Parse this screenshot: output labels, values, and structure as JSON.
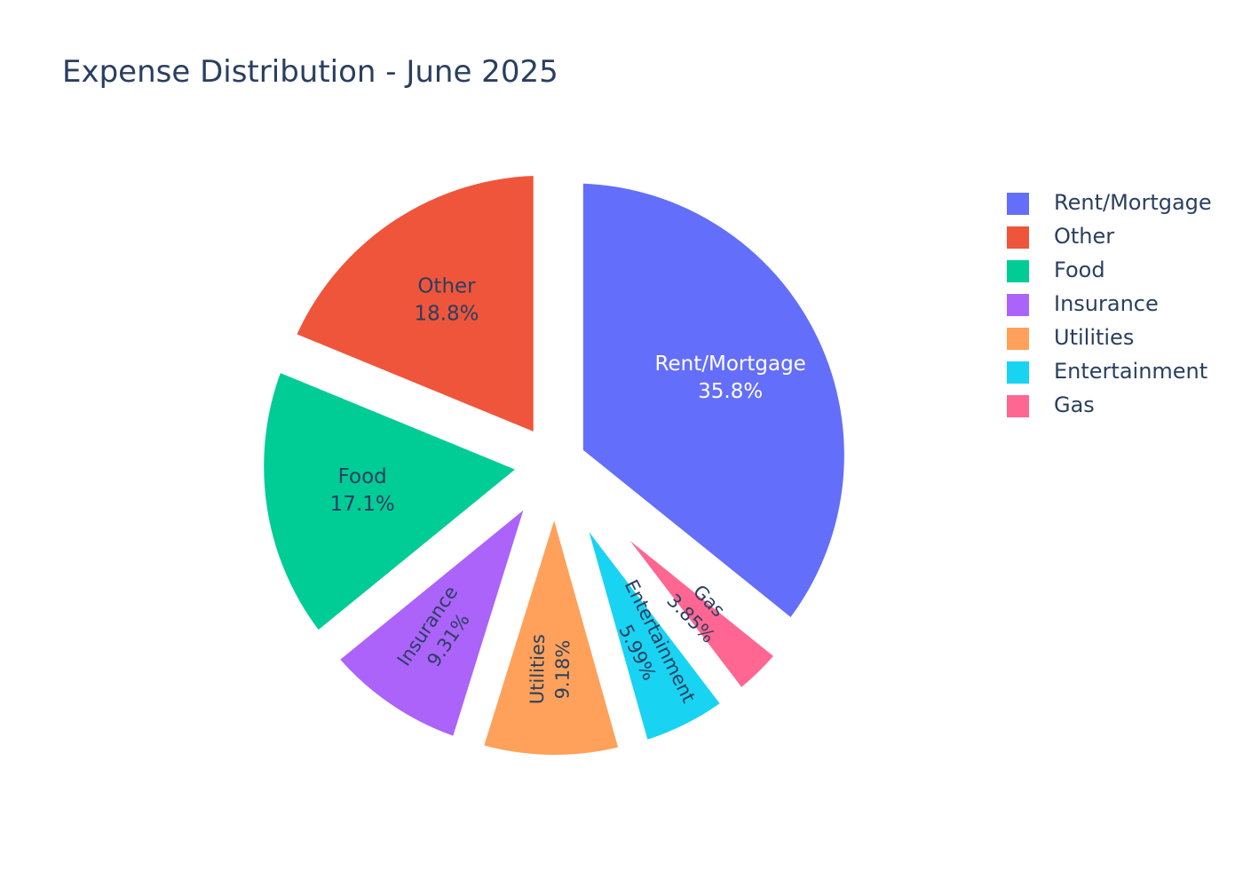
{
  "chart_data": {
    "type": "pie",
    "title": "Expense Distribution - June 2025",
    "legend_position": "right",
    "slices": [
      {
        "label": "Rent/Mortgage",
        "percent_text": "35.8%",
        "value": 35.8,
        "color": "#636efa",
        "label_color": "#ffffff"
      },
      {
        "label": "Gas",
        "percent_text": "3.85%",
        "value": 3.85,
        "color": "#ff6692",
        "label_color": "#2a3f5f"
      },
      {
        "label": "Entertainment",
        "percent_text": "5.99%",
        "value": 5.99,
        "color": "#19d3f3",
        "label_color": "#2a3f5f"
      },
      {
        "label": "Utilities",
        "percent_text": "9.18%",
        "value": 9.18,
        "color": "#ffa15a",
        "label_color": "#2a3f5f"
      },
      {
        "label": "Insurance",
        "percent_text": "9.31%",
        "value": 9.31,
        "color": "#ab63fa",
        "label_color": "#2a3f5f"
      },
      {
        "label": "Food",
        "percent_text": "17.1%",
        "value": 17.1,
        "color": "#00cc96",
        "label_color": "#2a3f5f"
      },
      {
        "label": "Other",
        "percent_text": "18.8%",
        "value": 18.8,
        "color": "#ef553b",
        "label_color": "#2a3f5f"
      }
    ],
    "legend": [
      {
        "label": "Rent/Mortgage",
        "color": "#636efa"
      },
      {
        "label": "Other",
        "color": "#ef553b"
      },
      {
        "label": "Food",
        "color": "#00cc96"
      },
      {
        "label": "Insurance",
        "color": "#ab63fa"
      },
      {
        "label": "Utilities",
        "color": "#ffa15a"
      },
      {
        "label": "Entertainment",
        "color": "#19d3f3"
      },
      {
        "label": "Gas",
        "color": "#ff6692"
      }
    ]
  }
}
